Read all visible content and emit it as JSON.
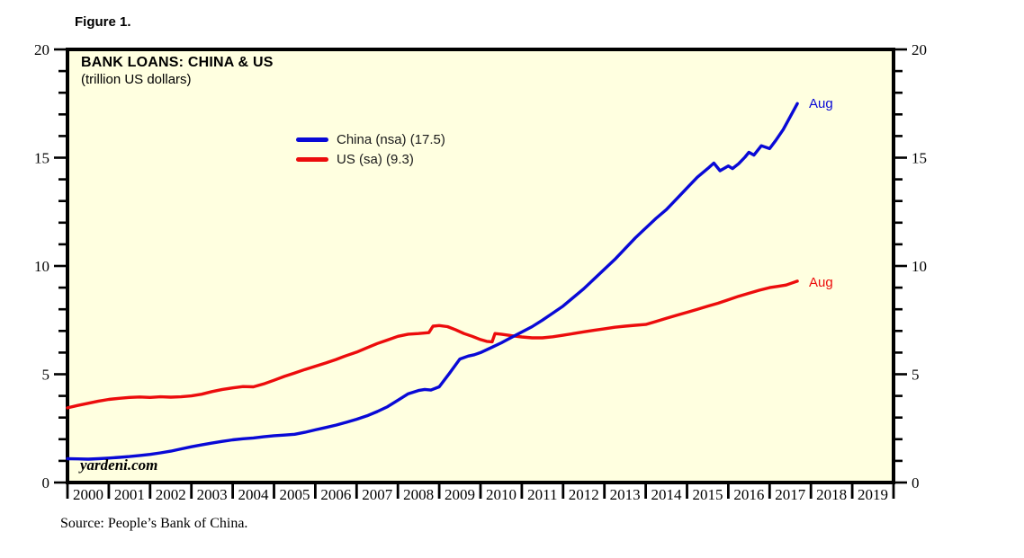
{
  "figure_label": "Figure 1.",
  "title": "BANK LOANS: CHINA & US",
  "subtitle": "(trillion US dollars)",
  "watermark": "yardeni.com",
  "source": "Source: People’s Bank of China.",
  "colors": {
    "plot_bg": "#ffffe0",
    "frame": "#000000",
    "text": "#000000",
    "china": "#0909d6",
    "us": "#ec0c0c"
  },
  "chart_data": {
    "type": "line",
    "title": "BANK LOANS: CHINA & US",
    "subtitle": "(trillion US dollars)",
    "xlabel": "",
    "ylabel": "trillion US dollars",
    "xlim": [
      2000,
      2020
    ],
    "ylim": [
      0,
      20
    ],
    "grid": false,
    "axes_mirrored": true,
    "legend_position": "upper-left-inside",
    "y_major_ticks": [
      0,
      5,
      10,
      15,
      20
    ],
    "y_minor_tick_step": 1,
    "x_year_labels": [
      "2000",
      "2001",
      "2002",
      "2003",
      "2004",
      "2005",
      "2006",
      "2007",
      "2008",
      "2009",
      "2010",
      "2011",
      "2012",
      "2013",
      "2014",
      "2015",
      "2016",
      "2017",
      "2018",
      "2019"
    ],
    "series": [
      {
        "name": "China (nsa)",
        "legend_label": "China (nsa) (17.5)",
        "color": "#0909d6",
        "end_annotation": "Aug",
        "last_value": 17.5,
        "points": [
          [
            2000,
            1.1
          ],
          [
            2000.25,
            1.09
          ],
          [
            2000.5,
            1.08
          ],
          [
            2000.75,
            1.1
          ],
          [
            2001,
            1.13
          ],
          [
            2001.25,
            1.16
          ],
          [
            2001.5,
            1.2
          ],
          [
            2001.75,
            1.25
          ],
          [
            2002,
            1.3
          ],
          [
            2002.25,
            1.37
          ],
          [
            2002.5,
            1.45
          ],
          [
            2002.75,
            1.55
          ],
          [
            2003,
            1.65
          ],
          [
            2003.25,
            1.74
          ],
          [
            2003.5,
            1.82
          ],
          [
            2003.75,
            1.9
          ],
          [
            2004,
            1.97
          ],
          [
            2004.25,
            2.02
          ],
          [
            2004.5,
            2.06
          ],
          [
            2004.75,
            2.11
          ],
          [
            2005,
            2.16
          ],
          [
            2005.25,
            2.19
          ],
          [
            2005.5,
            2.23
          ],
          [
            2005.75,
            2.32
          ],
          [
            2006,
            2.43
          ],
          [
            2006.25,
            2.54
          ],
          [
            2006.5,
            2.65
          ],
          [
            2006.75,
            2.78
          ],
          [
            2007,
            2.92
          ],
          [
            2007.25,
            3.08
          ],
          [
            2007.5,
            3.28
          ],
          [
            2007.75,
            3.5
          ],
          [
            2008,
            3.8
          ],
          [
            2008.25,
            4.1
          ],
          [
            2008.5,
            4.25
          ],
          [
            2008.65,
            4.3
          ],
          [
            2008.8,
            4.27
          ],
          [
            2009,
            4.42
          ],
          [
            2009.25,
            5.05
          ],
          [
            2009.5,
            5.7
          ],
          [
            2009.7,
            5.84
          ],
          [
            2009.85,
            5.9
          ],
          [
            2010,
            6.0
          ],
          [
            2010.25,
            6.22
          ],
          [
            2010.5,
            6.45
          ],
          [
            2010.75,
            6.7
          ],
          [
            2011,
            6.95
          ],
          [
            2011.25,
            7.2
          ],
          [
            2011.5,
            7.5
          ],
          [
            2011.75,
            7.82
          ],
          [
            2012,
            8.15
          ],
          [
            2012.25,
            8.55
          ],
          [
            2012.5,
            8.95
          ],
          [
            2012.75,
            9.4
          ],
          [
            2013,
            9.85
          ],
          [
            2013.25,
            10.3
          ],
          [
            2013.5,
            10.8
          ],
          [
            2013.75,
            11.3
          ],
          [
            2014,
            11.75
          ],
          [
            2014.25,
            12.2
          ],
          [
            2014.5,
            12.6
          ],
          [
            2014.75,
            13.1
          ],
          [
            2015,
            13.6
          ],
          [
            2015.25,
            14.1
          ],
          [
            2015.5,
            14.5
          ],
          [
            2015.65,
            14.75
          ],
          [
            2015.8,
            14.4
          ],
          [
            2016,
            14.62
          ],
          [
            2016.1,
            14.5
          ],
          [
            2016.25,
            14.72
          ],
          [
            2016.4,
            15.02
          ],
          [
            2016.5,
            15.25
          ],
          [
            2016.62,
            15.12
          ],
          [
            2016.8,
            15.55
          ],
          [
            2017,
            15.42
          ],
          [
            2017.15,
            15.8
          ],
          [
            2017.33,
            16.3
          ],
          [
            2017.5,
            16.9
          ],
          [
            2017.67,
            17.5
          ]
        ]
      },
      {
        "name": "US (sa)",
        "legend_label": "US (sa) (9.3)",
        "color": "#ec0c0c",
        "end_annotation": "Aug",
        "last_value": 9.3,
        "points": [
          [
            2000,
            3.45
          ],
          [
            2000.25,
            3.56
          ],
          [
            2000.5,
            3.66
          ],
          [
            2000.75,
            3.76
          ],
          [
            2001,
            3.84
          ],
          [
            2001.25,
            3.89
          ],
          [
            2001.5,
            3.93
          ],
          [
            2001.75,
            3.95
          ],
          [
            2002,
            3.93
          ],
          [
            2002.25,
            3.96
          ],
          [
            2002.5,
            3.94
          ],
          [
            2002.75,
            3.96
          ],
          [
            2003,
            4.0
          ],
          [
            2003.25,
            4.08
          ],
          [
            2003.5,
            4.2
          ],
          [
            2003.75,
            4.3
          ],
          [
            2004,
            4.37
          ],
          [
            2004.25,
            4.43
          ],
          [
            2004.5,
            4.42
          ],
          [
            2004.75,
            4.55
          ],
          [
            2005,
            4.72
          ],
          [
            2005.25,
            4.9
          ],
          [
            2005.5,
            5.06
          ],
          [
            2005.75,
            5.22
          ],
          [
            2006,
            5.37
          ],
          [
            2006.25,
            5.52
          ],
          [
            2006.5,
            5.68
          ],
          [
            2006.75,
            5.86
          ],
          [
            2007,
            6.02
          ],
          [
            2007.25,
            6.22
          ],
          [
            2007.5,
            6.42
          ],
          [
            2007.75,
            6.58
          ],
          [
            2008,
            6.75
          ],
          [
            2008.25,
            6.85
          ],
          [
            2008.5,
            6.88
          ],
          [
            2008.75,
            6.92
          ],
          [
            2008.85,
            7.22
          ],
          [
            2009,
            7.25
          ],
          [
            2009.2,
            7.2
          ],
          [
            2009.4,
            7.05
          ],
          [
            2009.6,
            6.88
          ],
          [
            2009.8,
            6.75
          ],
          [
            2010,
            6.6
          ],
          [
            2010.15,
            6.52
          ],
          [
            2010.28,
            6.5
          ],
          [
            2010.35,
            6.88
          ],
          [
            2010.5,
            6.85
          ],
          [
            2010.75,
            6.78
          ],
          [
            2011,
            6.72
          ],
          [
            2011.25,
            6.68
          ],
          [
            2011.5,
            6.68
          ],
          [
            2011.75,
            6.73
          ],
          [
            2012,
            6.8
          ],
          [
            2012.25,
            6.88
          ],
          [
            2012.5,
            6.96
          ],
          [
            2012.75,
            7.03
          ],
          [
            2013,
            7.1
          ],
          [
            2013.25,
            7.17
          ],
          [
            2013.5,
            7.22
          ],
          [
            2013.75,
            7.26
          ],
          [
            2014,
            7.3
          ],
          [
            2014.25,
            7.44
          ],
          [
            2014.5,
            7.58
          ],
          [
            2014.75,
            7.72
          ],
          [
            2015,
            7.86
          ],
          [
            2015.25,
            8.0
          ],
          [
            2015.5,
            8.14
          ],
          [
            2015.75,
            8.28
          ],
          [
            2016,
            8.44
          ],
          [
            2016.25,
            8.6
          ],
          [
            2016.5,
            8.74
          ],
          [
            2016.75,
            8.88
          ],
          [
            2017,
            9.0
          ],
          [
            2017.2,
            9.06
          ],
          [
            2017.4,
            9.12
          ],
          [
            2017.55,
            9.22
          ],
          [
            2017.67,
            9.3
          ]
        ]
      }
    ]
  }
}
